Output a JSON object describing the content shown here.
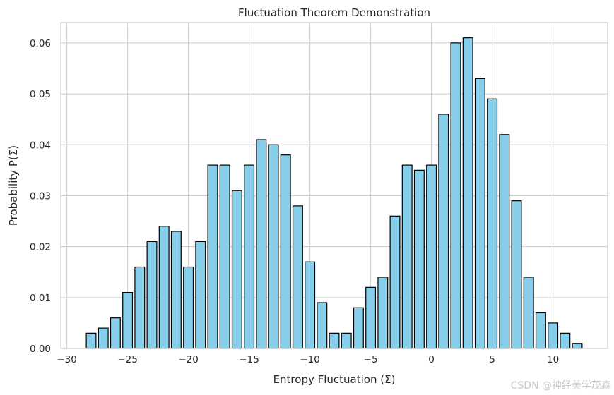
{
  "watermark": "CSDN @神经美学茂森",
  "chart_data": {
    "type": "bar",
    "title": "Fluctuation Theorem Demonstration",
    "xlabel": "Entropy Fluctuation (Σ)",
    "ylabel": "Probability P(Σ)",
    "xlim": [
      -30.5,
      14.5
    ],
    "ylim": [
      0,
      0.064
    ],
    "xticks": [
      -30,
      -25,
      -20,
      -15,
      -10,
      -5,
      0,
      5,
      10
    ],
    "xtick_labels": [
      "−30",
      "−25",
      "−20",
      "−15",
      "−10",
      "−5",
      "0",
      "5",
      "10"
    ],
    "yticks": [
      0,
      0.01,
      0.02,
      0.03,
      0.04,
      0.05,
      0.06
    ],
    "ytick_labels": [
      "0.00",
      "0.01",
      "0.02",
      "0.03",
      "0.04",
      "0.05",
      "0.06"
    ],
    "bar_width": 0.8,
    "grid": true,
    "bar_color": "#87CEEB",
    "edge_color": "#000000",
    "x": [
      -28,
      -27,
      -26,
      -25,
      -24,
      -23,
      -22,
      -21,
      -20,
      -19,
      -18,
      -17,
      -16,
      -15,
      -14,
      -13,
      -12,
      -11,
      -10,
      -9,
      -8,
      -7,
      -6,
      -5,
      -4,
      -3,
      -2,
      -1,
      0,
      1,
      2,
      3,
      4,
      5,
      6,
      7,
      8,
      9,
      10,
      11,
      12
    ],
    "values": [
      0.003,
      0.004,
      0.006,
      0.011,
      0.016,
      0.021,
      0.024,
      0.023,
      0.016,
      0.021,
      0.036,
      0.036,
      0.031,
      0.036,
      0.041,
      0.04,
      0.038,
      0.028,
      0.017,
      0.009,
      0.003,
      0.003,
      0.008,
      0.012,
      0.014,
      0.026,
      0.036,
      0.035,
      0.036,
      0.046,
      0.06,
      0.061,
      0.053,
      0.049,
      0.042,
      0.029,
      0.014,
      0.007,
      0.005,
      0.003,
      0.001
    ]
  }
}
